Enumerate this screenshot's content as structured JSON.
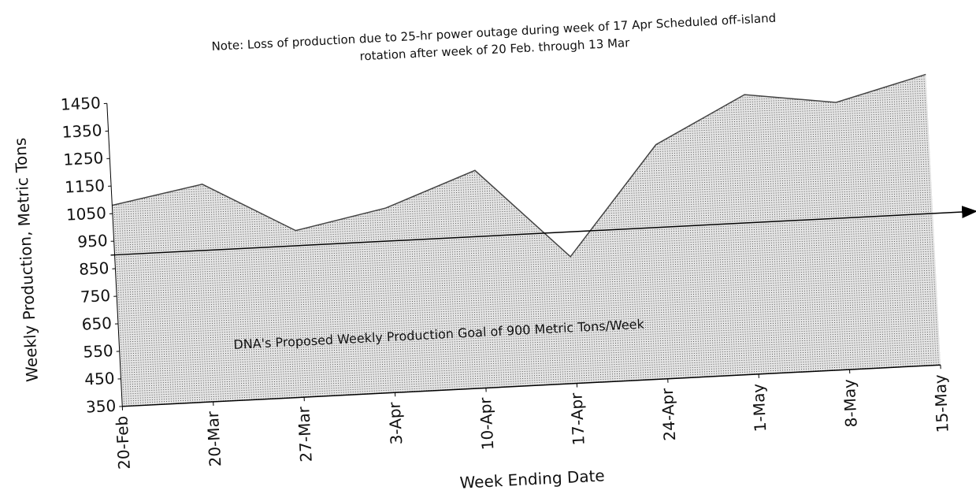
{
  "chart_data": {
    "type": "area",
    "note": [
      "Note: Loss of production due to 25-hr power outage during week of 17 Apr   Scheduled off-island",
      "rotation after week of 20 Feb.  through 13 Mar"
    ],
    "xlabel": "Week Ending Date",
    "ylabel": "Weekly Production, Metric Tons",
    "categories": [
      "20-Feb",
      "20-Mar",
      "27-Mar",
      "3-Apr",
      "10-Apr",
      "17-Apr",
      "24-Apr",
      "1-May",
      "8-May",
      "15-May"
    ],
    "series": [
      {
        "name": "Weekly Production",
        "color": "#444444",
        "values": [
          1080,
          1140,
          955,
          1020,
          1140,
          810,
          1200,
          1365,
          1320,
          1405
        ]
      }
    ],
    "goal": 900,
    "goal_label": "DNA's Proposed Weekly Production Goal of 900 Metric Tons/Week",
    "ylim": [
      350,
      1450
    ],
    "yticks": [
      350,
      450,
      550,
      650,
      750,
      850,
      950,
      1050,
      1150,
      1250,
      1350,
      1450
    ]
  }
}
